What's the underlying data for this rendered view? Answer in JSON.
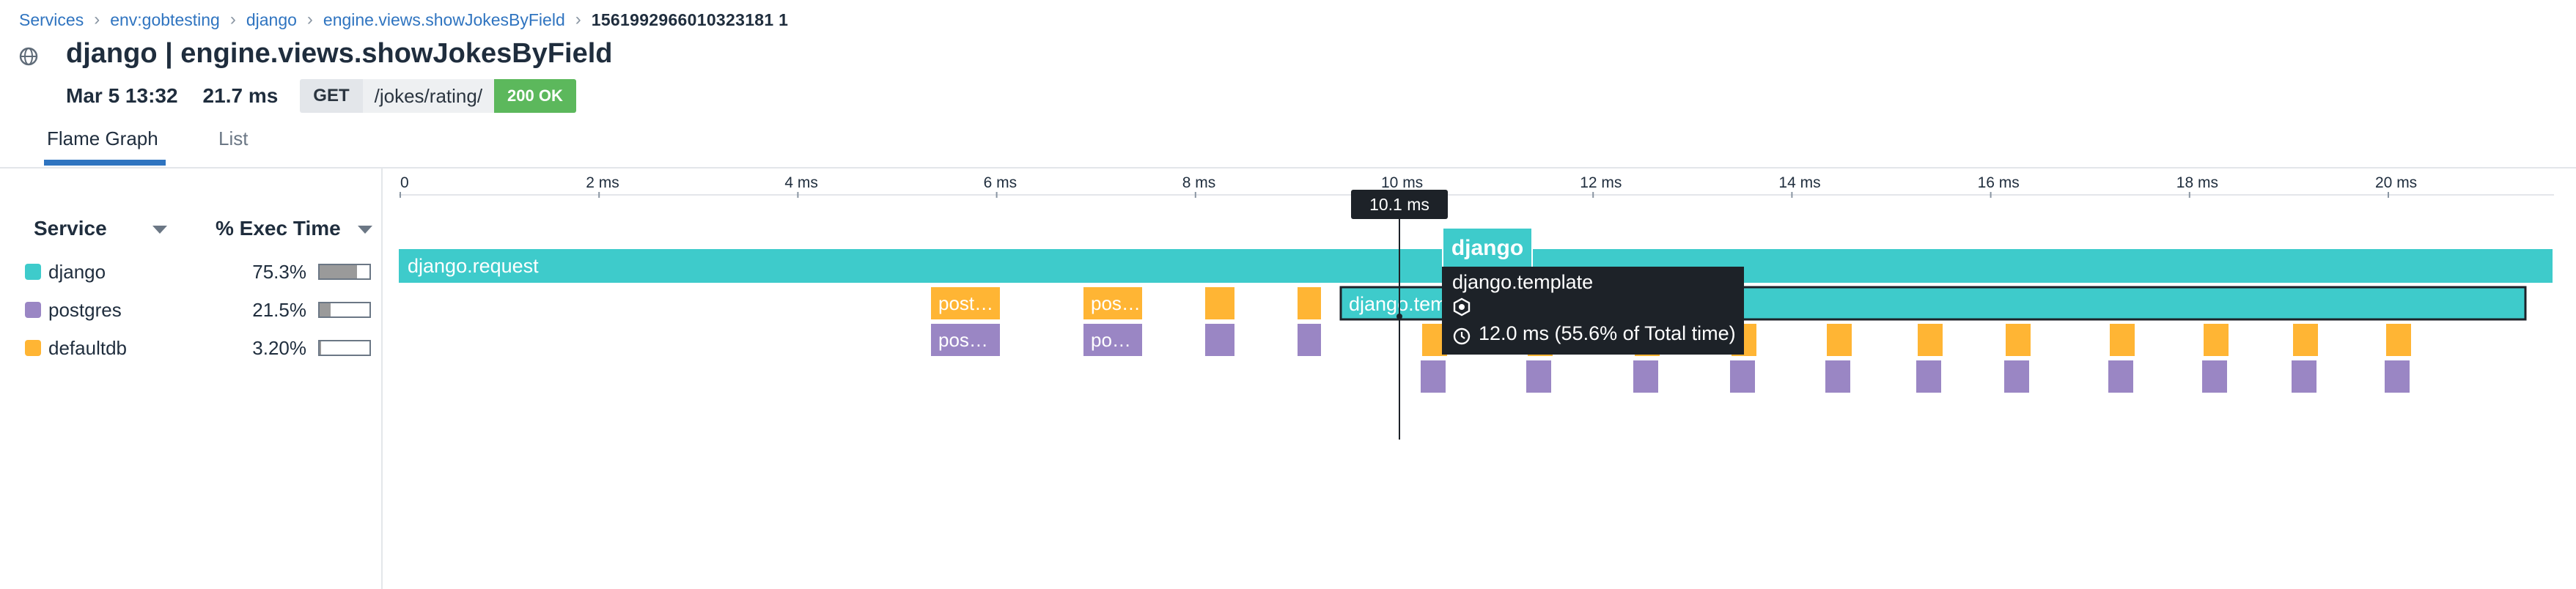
{
  "breadcrumb": {
    "items": [
      "Services",
      "env:gobtesting",
      "django",
      "engine.views.showJokesByField"
    ],
    "current": "1561992966010323181 1"
  },
  "header": {
    "title": "django | engine.views.showJokesByField",
    "date": "Mar 5 13:32",
    "duration": "21.7 ms",
    "method": "GET",
    "path": "/jokes/rating/",
    "status": "200 OK",
    "status_color": "#5cb85c"
  },
  "tabs": [
    "Flame Graph",
    "List"
  ],
  "active_tab": "Flame Graph",
  "legend": {
    "service_header": "Service",
    "exec_header": "% Exec Time",
    "rows": [
      {
        "name": "django",
        "pct": "75.3%",
        "fraction": 0.753,
        "color": "#3ecbcb"
      },
      {
        "name": "postgres",
        "pct": "21.5%",
        "fraction": 0.215,
        "color": "#9a86c4"
      },
      {
        "name": "defaultdb",
        "pct": "3.20%",
        "fraction": 0.032,
        "color": "#ffb534"
      }
    ]
  },
  "timeline": {
    "ticks": [
      "0",
      "2 ms",
      "4 ms",
      "6 ms",
      "8 ms",
      "10 ms",
      "12 ms",
      "14 ms",
      "16 ms",
      "18 ms",
      "20 ms"
    ],
    "cursor_label": "10.1 ms"
  },
  "spans": {
    "root": "django.request",
    "template": "django.template",
    "post_labels": [
      "post…",
      "pos…"
    ],
    "pg_labels": [
      "pos…",
      "po…"
    ]
  },
  "tooltip": {
    "service": "django",
    "name": "django.template",
    "time": "12.0 ms (55.6% of Total time)",
    "service_icon": "service-icon",
    "clock_icon": "clock-icon"
  }
}
